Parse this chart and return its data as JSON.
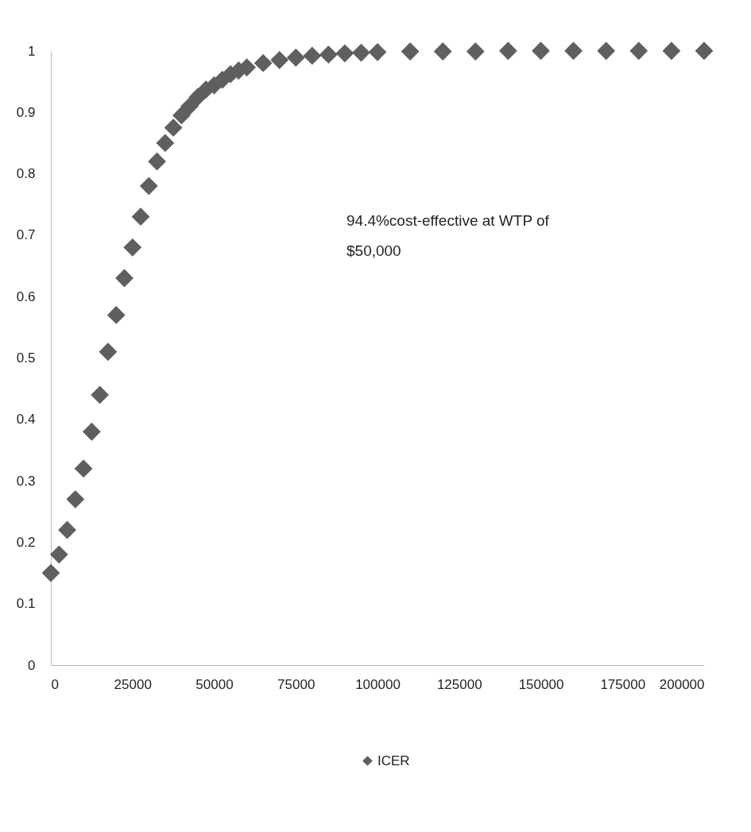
{
  "chart_data": {
    "type": "scatter",
    "marker": "diamond",
    "legend": "bottom",
    "grid": false,
    "x": [
      0,
      2500,
      5000,
      7500,
      10000,
      12500,
      15000,
      17500,
      20000,
      22500,
      25000,
      27500,
      30000,
      32500,
      35000,
      37500,
      40000,
      42500,
      45000,
      47500,
      50000,
      52500,
      55000,
      57500,
      60000,
      65000,
      70000,
      75000,
      80000,
      85000,
      90000,
      95000,
      100000,
      110000,
      120000,
      130000,
      140000,
      150000,
      160000,
      170000,
      180000,
      190000,
      200000
    ],
    "series": [
      {
        "name": "ICER",
        "color": "#5f5f5f",
        "values": [
          0.15,
          0.18,
          0.22,
          0.27,
          0.32,
          0.38,
          0.44,
          0.51,
          0.57,
          0.63,
          0.68,
          0.73,
          0.78,
          0.82,
          0.85,
          0.875,
          0.895,
          0.91,
          0.925,
          0.937,
          0.944,
          0.953,
          0.962,
          0.968,
          0.973,
          0.98,
          0.985,
          0.989,
          0.992,
          0.994,
          0.996,
          0.997,
          0.998,
          0.999,
          0.999,
          0.999,
          1,
          1,
          1,
          1,
          1,
          1,
          1
        ]
      }
    ],
    "xlim": [
      0,
      200000
    ],
    "xticks": [
      0,
      25000,
      50000,
      75000,
      100000,
      125000,
      150000,
      175000,
      200000
    ],
    "ylim": [
      0,
      1
    ],
    "yticks": [
      0,
      0.1,
      0.2,
      0.3,
      0.4,
      0.5,
      0.6,
      0.7,
      0.8,
      0.9,
      1
    ],
    "annotations": [
      "94.4%cost-effective at WTP of $50,000"
    ]
  }
}
